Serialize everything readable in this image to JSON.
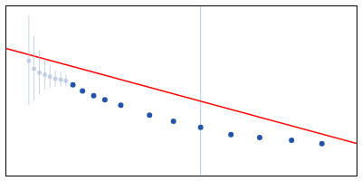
{
  "chart_data": {
    "type": "scatter",
    "xlim": [
      -0.05,
      1.05
    ],
    "ylim": [
      0.28,
      0.7
    ],
    "tick_labels": false,
    "grid": false,
    "series": [
      {
        "type": "rule",
        "color": "#aaccee",
        "x": [
          0.56
        ]
      },
      {
        "type": "line",
        "color": "#ff0000",
        "x": [
          -0.05,
          1.05
        ],
        "values": [
          0.595,
          0.36
        ]
      },
      {
        "type": "scatter",
        "color": "#aabbdd",
        "x": [
          0.022,
          0.038,
          0.055,
          0.072,
          0.088,
          0.105,
          0.122,
          0.138
        ],
        "values": [
          0.565,
          0.545,
          0.535,
          0.53,
          0.525,
          0.52,
          0.518,
          0.515
        ],
        "yerr": [
          0.11,
          0.08,
          0.055,
          0.038,
          0.028,
          0.022,
          0.018,
          0.015
        ]
      },
      {
        "type": "scatter",
        "color": "#2255aa",
        "x": [
          0.16,
          0.19,
          0.225,
          0.26,
          0.31,
          0.4,
          0.475,
          0.56,
          0.655,
          0.745,
          0.845,
          0.94
        ],
        "values": [
          0.505,
          0.49,
          0.478,
          0.468,
          0.455,
          0.43,
          0.415,
          0.4,
          0.382,
          0.375,
          0.368,
          0.36
        ]
      }
    ]
  }
}
